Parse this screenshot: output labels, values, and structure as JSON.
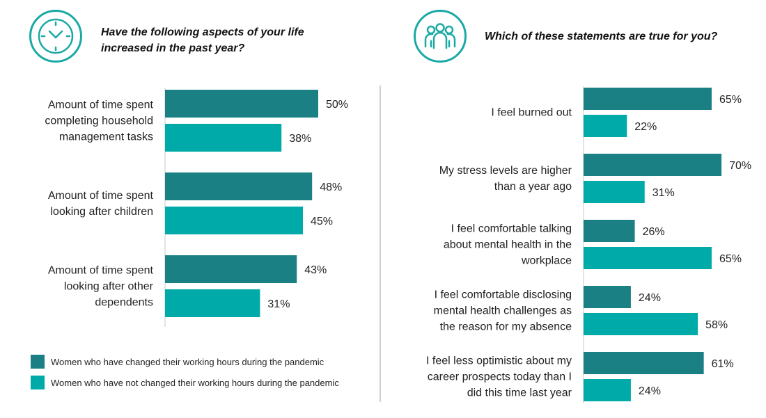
{
  "colors": {
    "changed": "#1a8084",
    "not_changed": "#00aaa8",
    "icon": "#1aa9a5",
    "axis": "#c8c8c8"
  },
  "left_panel": {
    "icon": "clock-icon",
    "heading_line1": "Have the following aspects of your life",
    "heading_line2": "increased in the past year?"
  },
  "right_panel": {
    "icon": "people-group-icon",
    "heading": "Which of these statements are true for you?"
  },
  "legend": {
    "changed_label": "Women who have changed their working hours during the pandemic",
    "not_changed_label": "Women who have not changed their working hours during the pandemic"
  },
  "chart_data": [
    {
      "type": "bar",
      "orientation": "horizontal",
      "categories": [
        [
          "Amount of time spent",
          "completing household",
          "management tasks"
        ],
        [
          "Amount of time spent",
          "looking after children"
        ],
        [
          "Amount of time spent",
          "looking after other",
          "dependents"
        ]
      ],
      "series": [
        {
          "name": "Women who have changed their working hours during the pandemic",
          "values": [
            50,
            48,
            43
          ],
          "labels": [
            "50%",
            "48%",
            "43%"
          ]
        },
        {
          "name": "Women who have not changed their working hours during the pandemic",
          "values": [
            38,
            45,
            31
          ],
          "labels": [
            "38%",
            "45%",
            "31%"
          ]
        }
      ],
      "unit": "%"
    },
    {
      "type": "bar",
      "orientation": "horizontal",
      "categories": [
        [
          "I feel burned out"
        ],
        [
          "My stress levels are higher",
          "than a year ago"
        ],
        [
          "I feel comfortable talking",
          "about mental health in the",
          "workplace"
        ],
        [
          "I feel comfortable disclosing",
          "mental health challenges as",
          "the reason for my absence"
        ],
        [
          "I feel less optimistic about my",
          "career prospects today than I",
          "did this time last year"
        ]
      ],
      "series": [
        {
          "name": "Women who have changed their working hours during the pandemic",
          "values": [
            65,
            70,
            26,
            24,
            61
          ],
          "labels": [
            "65%",
            "70%",
            "26%",
            "24%",
            "61%"
          ]
        },
        {
          "name": "Women who have not changed their working hours during the pandemic",
          "values": [
            22,
            31,
            65,
            58,
            24
          ],
          "labels": [
            "22%",
            "31%",
            "65%",
            "58%",
            "24%"
          ]
        }
      ],
      "unit": "%"
    }
  ]
}
